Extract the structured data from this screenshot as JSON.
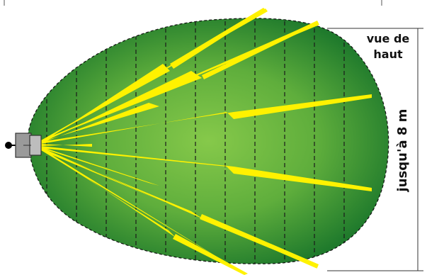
{
  "labels": {
    "view": [
      "vue de",
      "haut"
    ],
    "range": "jusqu'à 8 m"
  },
  "colors": {
    "zone_edge": "#1f7a2c",
    "zone_center": "#7cc143",
    "beam": "#fff200",
    "sensor_body": "#9a9a9a",
    "sensor_lens": "#bdbdbd",
    "sensor_mount": "#000000",
    "dashed_line": "#1a1a1a"
  },
  "icons": {
    "sensor": "motion-sensor-icon"
  }
}
